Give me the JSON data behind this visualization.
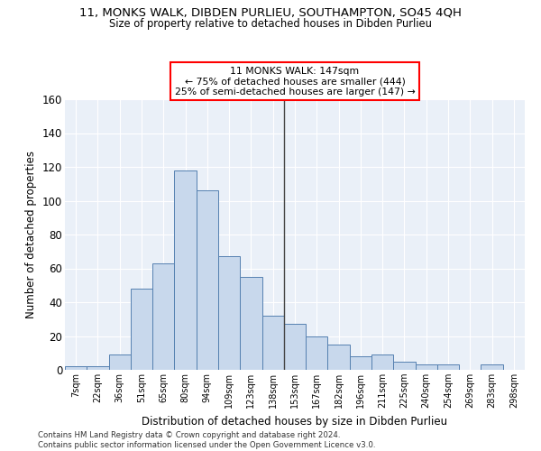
{
  "title": "11, MONKS WALK, DIBDEN PURLIEU, SOUTHAMPTON, SO45 4QH",
  "subtitle": "Size of property relative to detached houses in Dibden Purlieu",
  "xlabel": "Distribution of detached houses by size in Dibden Purlieu",
  "ylabel": "Number of detached properties",
  "bar_color": "#c8d8ec",
  "bar_edge_color": "#5580b0",
  "background_color": "#eaf0f8",
  "grid_color": "#d0dae8",
  "categories": [
    "7sqm",
    "22sqm",
    "36sqm",
    "51sqm",
    "65sqm",
    "80sqm",
    "94sqm",
    "109sqm",
    "123sqm",
    "138sqm",
    "153sqm",
    "167sqm",
    "182sqm",
    "196sqm",
    "211sqm",
    "225sqm",
    "240sqm",
    "254sqm",
    "269sqm",
    "283sqm",
    "298sqm"
  ],
  "values": [
    2,
    2,
    9,
    48,
    63,
    118,
    106,
    67,
    55,
    32,
    27,
    20,
    15,
    8,
    9,
    5,
    3,
    3,
    0,
    3,
    0
  ],
  "ylim": [
    0,
    160
  ],
  "yticks": [
    0,
    20,
    40,
    60,
    80,
    100,
    120,
    140,
    160
  ],
  "annotation_line1": "11 MONKS WALK: 147sqm",
  "annotation_line2": "← 75% of detached houses are smaller (444)",
  "annotation_line3": "25% of semi-detached houses are larger (147) →",
  "vline_x": 9.5,
  "footer_line1": "Contains HM Land Registry data © Crown copyright and database right 2024.",
  "footer_line2": "Contains public sector information licensed under the Open Government Licence v3.0."
}
